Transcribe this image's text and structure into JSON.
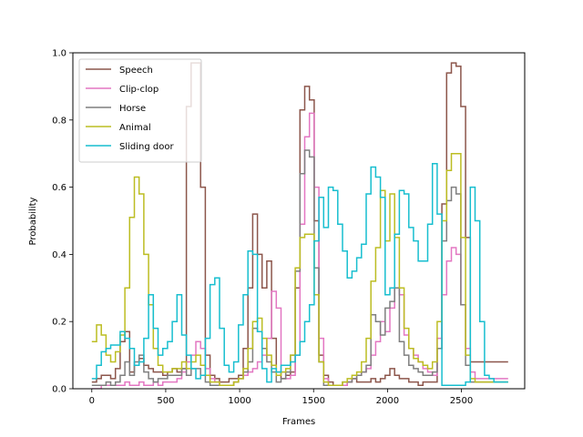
{
  "chart_data": {
    "type": "line",
    "step": true,
    "xlabel": "Frames",
    "ylabel": "Probability",
    "xlim": [
      -128,
      2928
    ],
    "ylim": [
      0,
      1
    ],
    "xticks": [
      0,
      500,
      1000,
      1500,
      2000,
      2500
    ],
    "yticks": [
      0.0,
      0.2,
      0.4,
      0.6,
      0.8,
      1.0
    ],
    "grid": false,
    "legend_position": "top-left",
    "x": [
      0,
      32,
      64,
      96,
      128,
      160,
      192,
      224,
      256,
      288,
      320,
      352,
      384,
      416,
      448,
      480,
      512,
      544,
      576,
      608,
      640,
      672,
      704,
      736,
      768,
      800,
      832,
      864,
      896,
      928,
      960,
      992,
      1024,
      1056,
      1088,
      1120,
      1152,
      1184,
      1216,
      1248,
      1280,
      1312,
      1344,
      1376,
      1408,
      1440,
      1472,
      1504,
      1536,
      1568,
      1600,
      1632,
      1664,
      1696,
      1728,
      1760,
      1792,
      1824,
      1856,
      1888,
      1920,
      1952,
      1984,
      2016,
      2048,
      2080,
      2112,
      2144,
      2176,
      2208,
      2240,
      2272,
      2304,
      2336,
      2368,
      2400,
      2432,
      2464,
      2496,
      2528,
      2560,
      2592,
      2624,
      2656,
      2688,
      2720,
      2752,
      2784
    ],
    "series": [
      {
        "name": "Speech",
        "color": "#8c564b",
        "values": [
          0.02,
          0.03,
          0.04,
          0.04,
          0.03,
          0.06,
          0.14,
          0.17,
          0.05,
          0.07,
          0.09,
          0.07,
          0.06,
          0.05,
          0.05,
          0.04,
          0.05,
          0.06,
          0.05,
          0.06,
          0.84,
          0.97,
          0.97,
          0.6,
          0.1,
          0.04,
          0.03,
          0.02,
          0.02,
          0.03,
          0.03,
          0.04,
          0.12,
          0.3,
          0.52,
          0.4,
          0.3,
          0.38,
          0.15,
          0.05,
          0.03,
          0.04,
          0.05,
          0.3,
          0.83,
          0.9,
          0.86,
          0.5,
          0.1,
          0.04,
          0.02,
          0.01,
          0.01,
          0.01,
          0.02,
          0.03,
          0.02,
          0.02,
          0.02,
          0.03,
          0.02,
          0.03,
          0.04,
          0.06,
          0.04,
          0.03,
          0.03,
          0.02,
          0.02,
          0.01,
          0.02,
          0.02,
          0.02,
          0.12,
          0.55,
          0.94,
          0.97,
          0.96,
          0.84,
          0.45,
          0.08,
          0.08,
          0.08,
          0.08,
          0.08,
          0.08,
          0.08,
          0.08
        ]
      },
      {
        "name": "Clip-clop",
        "color": "#e377c2",
        "values": [
          0.0,
          0.0,
          0.01,
          0.01,
          0.01,
          0.01,
          0.01,
          0.02,
          0.01,
          0.01,
          0.02,
          0.01,
          0.01,
          0.02,
          0.01,
          0.02,
          0.02,
          0.02,
          0.03,
          0.05,
          0.08,
          0.1,
          0.14,
          0.12,
          0.06,
          0.03,
          0.02,
          0.01,
          0.01,
          0.01,
          0.02,
          0.03,
          0.04,
          0.05,
          0.06,
          0.08,
          0.1,
          0.15,
          0.29,
          0.24,
          0.05,
          0.03,
          0.04,
          0.1,
          0.49,
          0.75,
          0.82,
          0.6,
          0.15,
          0.03,
          0.01,
          0.01,
          0.01,
          0.01,
          0.02,
          0.03,
          0.04,
          0.05,
          0.06,
          0.1,
          0.14,
          0.2,
          0.17,
          0.24,
          0.3,
          0.28,
          0.16,
          0.12,
          0.1,
          0.08,
          0.06,
          0.05,
          0.04,
          0.15,
          0.28,
          0.38,
          0.42,
          0.4,
          0.25,
          0.12,
          0.05,
          0.03,
          0.03,
          0.03,
          0.03,
          0.03,
          0.03,
          0.03
        ]
      },
      {
        "name": "Horse",
        "color": "#7f7f7f",
        "values": [
          0.01,
          0.01,
          0.01,
          0.02,
          0.01,
          0.02,
          0.04,
          0.08,
          0.04,
          0.08,
          0.1,
          0.05,
          0.03,
          0.02,
          0.03,
          0.03,
          0.04,
          0.04,
          0.04,
          0.06,
          0.04,
          0.06,
          0.06,
          0.04,
          0.02,
          0.01,
          0.01,
          0.01,
          0.01,
          0.01,
          0.02,
          0.03,
          0.05,
          0.08,
          0.18,
          0.17,
          0.12,
          0.08,
          0.05,
          0.02,
          0.03,
          0.05,
          0.1,
          0.35,
          0.64,
          0.71,
          0.69,
          0.36,
          0.08,
          0.01,
          0.01,
          0.01,
          0.01,
          0.02,
          0.02,
          0.03,
          0.04,
          0.05,
          0.07,
          0.22,
          0.2,
          0.16,
          0.24,
          0.26,
          0.3,
          0.14,
          0.1,
          0.07,
          0.06,
          0.05,
          0.04,
          0.04,
          0.05,
          0.12,
          0.44,
          0.56,
          0.6,
          0.58,
          0.25,
          0.07,
          0.02,
          0.02,
          0.02,
          0.02,
          0.02,
          0.02,
          0.02,
          0.02
        ]
      },
      {
        "name": "Animal",
        "color": "#bcbd22",
        "values": [
          0.14,
          0.19,
          0.16,
          0.1,
          0.08,
          0.11,
          0.16,
          0.3,
          0.51,
          0.63,
          0.58,
          0.4,
          0.25,
          0.12,
          0.07,
          0.05,
          0.05,
          0.06,
          0.06,
          0.08,
          0.06,
          0.08,
          0.1,
          0.07,
          0.04,
          0.02,
          0.02,
          0.01,
          0.01,
          0.01,
          0.02,
          0.03,
          0.06,
          0.12,
          0.2,
          0.21,
          0.15,
          0.1,
          0.07,
          0.04,
          0.05,
          0.06,
          0.1,
          0.36,
          0.45,
          0.46,
          0.46,
          0.28,
          0.08,
          0.02,
          0.01,
          0.01,
          0.01,
          0.02,
          0.03,
          0.04,
          0.05,
          0.08,
          0.15,
          0.32,
          0.42,
          0.59,
          0.44,
          0.58,
          0.45,
          0.3,
          0.18,
          0.12,
          0.09,
          0.08,
          0.07,
          0.06,
          0.08,
          0.2,
          0.5,
          0.65,
          0.7,
          0.7,
          0.45,
          0.1,
          0.03,
          0.02,
          0.02,
          0.02,
          0.02,
          0.02,
          0.02,
          0.02
        ]
      },
      {
        "name": "Sliding door",
        "color": "#17becf",
        "values": [
          0.03,
          0.07,
          0.11,
          0.12,
          0.13,
          0.13,
          0.17,
          0.15,
          0.12,
          0.07,
          0.08,
          0.15,
          0.28,
          0.18,
          0.1,
          0.12,
          0.14,
          0.2,
          0.28,
          0.16,
          0.1,
          0.06,
          0.03,
          0.04,
          0.15,
          0.31,
          0.33,
          0.18,
          0.07,
          0.05,
          0.08,
          0.19,
          0.28,
          0.41,
          0.4,
          0.17,
          0.06,
          0.02,
          0.06,
          0.05,
          0.07,
          0.07,
          0.08,
          0.1,
          0.14,
          0.2,
          0.25,
          0.44,
          0.57,
          0.48,
          0.6,
          0.59,
          0.49,
          0.41,
          0.33,
          0.35,
          0.39,
          0.43,
          0.58,
          0.66,
          0.63,
          0.57,
          0.28,
          0.3,
          0.46,
          0.59,
          0.58,
          0.48,
          0.44,
          0.38,
          0.38,
          0.49,
          0.67,
          0.52,
          0.01,
          0.01,
          0.01,
          0.01,
          0.01,
          0.02,
          0.6,
          0.5,
          0.2,
          0.04,
          0.03,
          0.02,
          0.02,
          0.02
        ]
      }
    ]
  }
}
